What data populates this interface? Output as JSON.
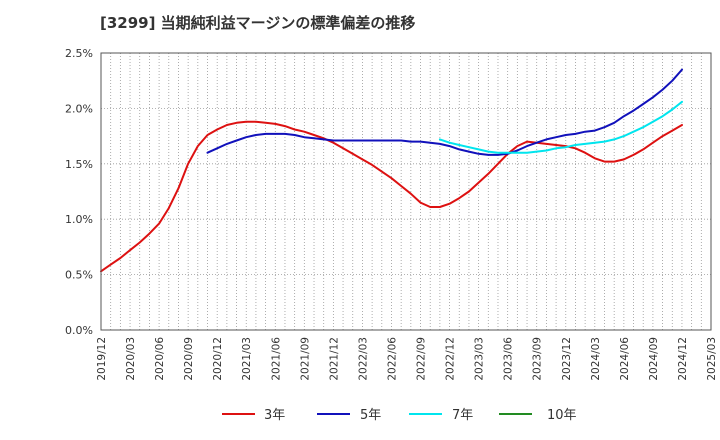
{
  "chart_data": {
    "type": "line",
    "title": "[3299]  当期純利益マージンの標準偏差の推移",
    "ylim": [
      0,
      0.025
    ],
    "y_ticks": [
      {
        "value": 0.0,
        "label": "0.0%"
      },
      {
        "value": 0.005,
        "label": "0.5%"
      },
      {
        "value": 0.01,
        "label": "1.0%"
      },
      {
        "value": 0.015,
        "label": "1.5%"
      },
      {
        "value": 0.02,
        "label": "2.0%"
      },
      {
        "value": 0.025,
        "label": "2.5%"
      }
    ],
    "x_ticks": [
      "2019/12",
      "2020/03",
      "2020/06",
      "2020/09",
      "2020/12",
      "2021/03",
      "2021/06",
      "2021/09",
      "2021/12",
      "2022/03",
      "2022/06",
      "2022/09",
      "2022/12",
      "2023/03",
      "2023/06",
      "2023/09",
      "2023/12",
      "2024/03",
      "2024/06",
      "2024/09",
      "2024/12",
      "2025/03"
    ],
    "grid": true,
    "legend_position": "bottom",
    "series": [
      {
        "name": "3年",
        "color": "#dd1111",
        "x": [
          "2019/12",
          "2020/01",
          "2020/02",
          "2020/03",
          "2020/04",
          "2020/05",
          "2020/06",
          "2020/07",
          "2020/08",
          "2020/09",
          "2020/10",
          "2020/11",
          "2020/12",
          "2021/01",
          "2021/02",
          "2021/03",
          "2021/04",
          "2021/05",
          "2021/06",
          "2021/07",
          "2021/08",
          "2021/09",
          "2021/10",
          "2021/11",
          "2021/12",
          "2022/01",
          "2022/02",
          "2022/03",
          "2022/04",
          "2022/05",
          "2022/06",
          "2022/07",
          "2022/08",
          "2022/09",
          "2022/10",
          "2022/11",
          "2022/12",
          "2023/01",
          "2023/02",
          "2023/03",
          "2023/04",
          "2023/05",
          "2023/06",
          "2023/07",
          "2023/08",
          "2023/09",
          "2023/10",
          "2023/11",
          "2023/12",
          "2024/01",
          "2024/02",
          "2024/03",
          "2024/04",
          "2024/05",
          "2024/06",
          "2024/07",
          "2024/08",
          "2024/09",
          "2024/10",
          "2024/11",
          "2024/12"
        ],
        "values": [
          0.0053,
          0.0059,
          0.0065,
          0.0072,
          0.0079,
          0.0087,
          0.0096,
          0.011,
          0.0128,
          0.015,
          0.0166,
          0.0176,
          0.0181,
          0.0185,
          0.0187,
          0.0188,
          0.0188,
          0.0187,
          0.0186,
          0.0184,
          0.0181,
          0.0179,
          0.0176,
          0.0173,
          0.0169,
          0.0164,
          0.0159,
          0.0154,
          0.0149,
          0.0143,
          0.0137,
          0.013,
          0.0123,
          0.0115,
          0.0111,
          0.0111,
          0.0114,
          0.0119,
          0.0125,
          0.0133,
          0.0141,
          0.015,
          0.0159,
          0.0166,
          0.017,
          0.0169,
          0.0168,
          0.0167,
          0.0166,
          0.0164,
          0.016,
          0.0155,
          0.0152,
          0.0152,
          0.0154,
          0.0158,
          0.0163,
          0.0169,
          0.0175,
          0.018,
          0.0185
        ]
      },
      {
        "name": "5年",
        "color": "#1111bb",
        "x": [
          "2020/11",
          "2020/12",
          "2021/01",
          "2021/02",
          "2021/03",
          "2021/04",
          "2021/05",
          "2021/06",
          "2021/07",
          "2021/08",
          "2021/09",
          "2021/10",
          "2021/11",
          "2021/12",
          "2022/01",
          "2022/02",
          "2022/03",
          "2022/04",
          "2022/05",
          "2022/06",
          "2022/07",
          "2022/08",
          "2022/09",
          "2022/10",
          "2022/11",
          "2022/12",
          "2023/01",
          "2023/02",
          "2023/03",
          "2023/04",
          "2023/05",
          "2023/06",
          "2023/07",
          "2023/08",
          "2023/09",
          "2023/10",
          "2023/11",
          "2023/12",
          "2024/01",
          "2024/02",
          "2024/03",
          "2024/04",
          "2024/05",
          "2024/06",
          "2024/07",
          "2024/08",
          "2024/09",
          "2024/10",
          "2024/11",
          "2024/12"
        ],
        "values": [
          0.016,
          0.0164,
          0.0168,
          0.0171,
          0.0174,
          0.0176,
          0.0177,
          0.0177,
          0.0177,
          0.0176,
          0.0174,
          0.0173,
          0.0172,
          0.0171,
          0.0171,
          0.0171,
          0.0171,
          0.0171,
          0.0171,
          0.0171,
          0.0171,
          0.017,
          0.017,
          0.0169,
          0.0168,
          0.0166,
          0.0163,
          0.0161,
          0.0159,
          0.0158,
          0.0158,
          0.0159,
          0.0162,
          0.0166,
          0.0169,
          0.0172,
          0.0174,
          0.0176,
          0.0177,
          0.0179,
          0.018,
          0.0183,
          0.0187,
          0.0193,
          0.0198,
          0.0204,
          0.021,
          0.0217,
          0.0225,
          0.0235
        ]
      },
      {
        "name": "7年",
        "color": "#00e5ee",
        "x": [
          "2022/11",
          "2022/12",
          "2023/01",
          "2023/02",
          "2023/03",
          "2023/04",
          "2023/05",
          "2023/06",
          "2023/07",
          "2023/08",
          "2023/09",
          "2023/10",
          "2023/11",
          "2023/12",
          "2024/01",
          "2024/02",
          "2024/03",
          "2024/04",
          "2024/05",
          "2024/06",
          "2024/07",
          "2024/08",
          "2024/09",
          "2024/10",
          "2024/11",
          "2024/12"
        ],
        "values": [
          0.0172,
          0.0169,
          0.0167,
          0.0165,
          0.0163,
          0.0161,
          0.016,
          0.016,
          0.016,
          0.016,
          0.0161,
          0.0162,
          0.0164,
          0.0165,
          0.0167,
          0.0168,
          0.0169,
          0.017,
          0.0172,
          0.0175,
          0.0179,
          0.0183,
          0.0188,
          0.0193,
          0.0199,
          0.0206
        ]
      },
      {
        "name": "10年",
        "color": "#228b22",
        "x": [],
        "values": []
      }
    ]
  }
}
